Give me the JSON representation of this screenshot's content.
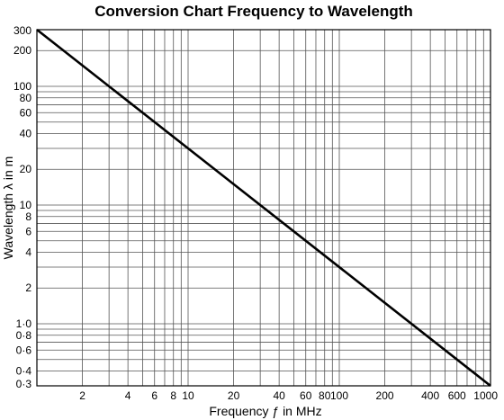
{
  "chart_data": {
    "type": "line",
    "title": "Conversion Chart Frequency to Wavelength",
    "xlabel": "Frequency ƒ in MHz",
    "ylabel": "Wavelength λ in m",
    "x_scale": "log",
    "y_scale": "log",
    "xlim": [
      1,
      1000
    ],
    "ylim": [
      0.3,
      300
    ],
    "grid": true,
    "legend": "none",
    "x_ticks": [
      {
        "value": 2,
        "label": "2"
      },
      {
        "value": 4,
        "label": "4"
      },
      {
        "value": 6,
        "label": "6"
      },
      {
        "value": 8,
        "label": "8"
      },
      {
        "value": 10,
        "label": "10"
      },
      {
        "value": 20,
        "label": "20"
      },
      {
        "value": 40,
        "label": "40"
      },
      {
        "value": 60,
        "label": "60"
      },
      {
        "value": 80,
        "label": "80"
      },
      {
        "value": 100,
        "label": "100"
      },
      {
        "value": 200,
        "label": "200"
      },
      {
        "value": 400,
        "label": "400"
      },
      {
        "value": 600,
        "label": "600"
      },
      {
        "value": 1000,
        "label": "1000"
      }
    ],
    "y_ticks": [
      {
        "value": 300,
        "label": "300"
      },
      {
        "value": 200,
        "label": "200"
      },
      {
        "value": 100,
        "label": "100"
      },
      {
        "value": 80,
        "label": "80"
      },
      {
        "value": 60,
        "label": "60"
      },
      {
        "value": 40,
        "label": "40"
      },
      {
        "value": 20,
        "label": "20"
      },
      {
        "value": 10,
        "label": "10"
      },
      {
        "value": 8,
        "label": "8"
      },
      {
        "value": 6,
        "label": "6"
      },
      {
        "value": 4,
        "label": "4"
      },
      {
        "value": 2,
        "label": "2"
      },
      {
        "value": 1,
        "label": "1·0"
      },
      {
        "value": 0.8,
        "label": "0·8"
      },
      {
        "value": 0.6,
        "label": "0·6"
      },
      {
        "value": 0.4,
        "label": "0·4"
      },
      {
        "value": 0.3,
        "label": "0·3"
      }
    ],
    "x_gridlines": [
      1,
      2,
      3,
      4,
      5,
      6,
      7,
      8,
      9,
      10,
      20,
      30,
      40,
      50,
      60,
      70,
      80,
      90,
      100,
      200,
      300,
      400,
      500,
      600,
      700,
      800,
      900,
      1000
    ],
    "y_gridlines": [
      0.3,
      0.4,
      0.5,
      0.6,
      0.7,
      0.8,
      0.9,
      1,
      2,
      3,
      4,
      5,
      6,
      7,
      8,
      9,
      10,
      20,
      30,
      40,
      50,
      60,
      70,
      80,
      90,
      100,
      200,
      300
    ],
    "series": [
      {
        "x": [
          1,
          1000
        ],
        "y": [
          300,
          0.3
        ],
        "color": "#000000"
      }
    ]
  }
}
